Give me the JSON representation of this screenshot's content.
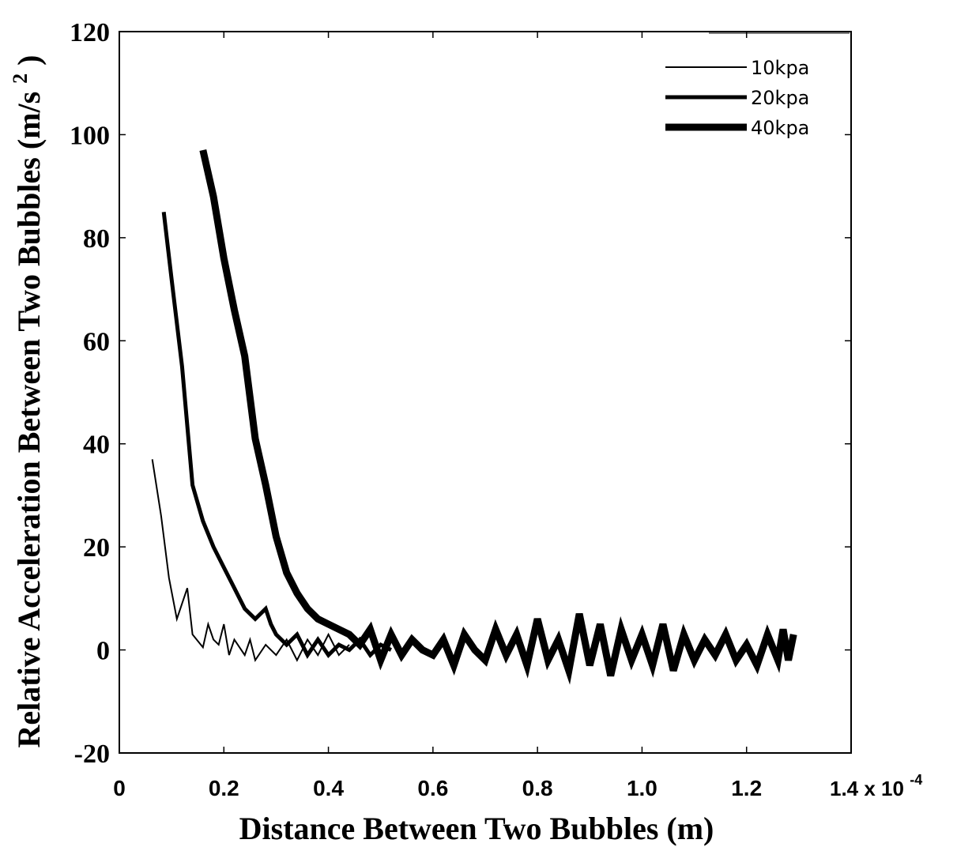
{
  "chart_data": {
    "type": "line",
    "xlabel": "Distance Between Two Bubbles (m)",
    "ylabel_main": "Relative Acceleration Between Two Bubbles (m/s",
    "ylabel_sup": "2",
    "ylabel_end": ")",
    "x_multiplier": "1.4 x 10",
    "x_multiplier_exp": "-4",
    "xlim": [
      0,
      1.4
    ],
    "ylim": [
      -20,
      120
    ],
    "xticks": [
      0,
      0.2,
      0.4,
      0.6,
      0.8,
      1.0,
      1.2
    ],
    "xtick_labels": [
      "0",
      "0.2",
      "0.4",
      "0.6",
      "0.8",
      "1.0",
      "1.2"
    ],
    "yticks": [
      -20,
      0,
      20,
      40,
      60,
      80,
      100,
      120
    ],
    "ytick_labels": [
      "-20",
      "0",
      "20",
      "40",
      "60",
      "80",
      "100",
      "120"
    ],
    "grid": false,
    "legend_position": "top-right",
    "series": [
      {
        "name": "10kpa",
        "line_weight": "thin",
        "points": [
          [
            0.063,
            37
          ],
          [
            0.08,
            26
          ],
          [
            0.095,
            14
          ],
          [
            0.11,
            6
          ],
          [
            0.13,
            12
          ],
          [
            0.14,
            3
          ],
          [
            0.16,
            0.5
          ],
          [
            0.17,
            5
          ],
          [
            0.18,
            2
          ],
          [
            0.19,
            1
          ],
          [
            0.2,
            5
          ],
          [
            0.21,
            -1
          ],
          [
            0.22,
            2
          ],
          [
            0.24,
            -1
          ],
          [
            0.25,
            2
          ],
          [
            0.26,
            -2
          ],
          [
            0.28,
            1
          ],
          [
            0.3,
            -1
          ],
          [
            0.32,
            2
          ],
          [
            0.34,
            -2
          ],
          [
            0.36,
            2
          ],
          [
            0.38,
            -1
          ],
          [
            0.4,
            3
          ],
          [
            0.42,
            -1
          ],
          [
            0.44,
            1
          ]
        ]
      },
      {
        "name": "20kpa",
        "line_weight": "medium",
        "points": [
          [
            0.085,
            85
          ],
          [
            0.1,
            72
          ],
          [
            0.12,
            55
          ],
          [
            0.14,
            32
          ],
          [
            0.16,
            25
          ],
          [
            0.18,
            20
          ],
          [
            0.2,
            16
          ],
          [
            0.22,
            12
          ],
          [
            0.24,
            8
          ],
          [
            0.26,
            6
          ],
          [
            0.28,
            8
          ],
          [
            0.29,
            5
          ],
          [
            0.3,
            3
          ],
          [
            0.32,
            1
          ],
          [
            0.34,
            3
          ],
          [
            0.36,
            -1
          ],
          [
            0.38,
            2
          ],
          [
            0.4,
            -1
          ],
          [
            0.42,
            1
          ],
          [
            0.44,
            0
          ],
          [
            0.46,
            2
          ],
          [
            0.48,
            -1
          ],
          [
            0.5,
            1
          ],
          [
            0.52,
            0
          ]
        ]
      },
      {
        "name": "40kpa",
        "line_weight": "thick",
        "points": [
          [
            0.16,
            97
          ],
          [
            0.18,
            88
          ],
          [
            0.2,
            76
          ],
          [
            0.22,
            66
          ],
          [
            0.24,
            57
          ],
          [
            0.26,
            41
          ],
          [
            0.28,
            32
          ],
          [
            0.3,
            22
          ],
          [
            0.32,
            15
          ],
          [
            0.34,
            11
          ],
          [
            0.36,
            8
          ],
          [
            0.38,
            6
          ],
          [
            0.4,
            5
          ],
          [
            0.42,
            4
          ],
          [
            0.44,
            3
          ],
          [
            0.46,
            1
          ],
          [
            0.48,
            4
          ],
          [
            0.5,
            -2
          ],
          [
            0.52,
            3
          ],
          [
            0.54,
            -1
          ],
          [
            0.56,
            2
          ],
          [
            0.58,
            0
          ],
          [
            0.6,
            -1
          ],
          [
            0.62,
            2
          ],
          [
            0.64,
            -3
          ],
          [
            0.66,
            3
          ],
          [
            0.68,
            0
          ],
          [
            0.7,
            -2
          ],
          [
            0.72,
            4
          ],
          [
            0.74,
            -1
          ],
          [
            0.76,
            3
          ],
          [
            0.78,
            -3
          ],
          [
            0.8,
            6
          ],
          [
            0.82,
            -2
          ],
          [
            0.84,
            2
          ],
          [
            0.86,
            -4
          ],
          [
            0.88,
            7
          ],
          [
            0.9,
            -3
          ],
          [
            0.92,
            5
          ],
          [
            0.94,
            -5
          ],
          [
            0.96,
            4
          ],
          [
            0.98,
            -2
          ],
          [
            1.0,
            3
          ],
          [
            1.02,
            -3
          ],
          [
            1.04,
            5
          ],
          [
            1.06,
            -4
          ],
          [
            1.08,
            3
          ],
          [
            1.1,
            -2
          ],
          [
            1.12,
            2
          ],
          [
            1.14,
            -1
          ],
          [
            1.16,
            3
          ],
          [
            1.18,
            -2
          ],
          [
            1.2,
            1
          ],
          [
            1.22,
            -3
          ],
          [
            1.24,
            3
          ],
          [
            1.26,
            -2
          ],
          [
            1.27,
            4
          ],
          [
            1.28,
            -2
          ],
          [
            1.29,
            3
          ]
        ]
      }
    ]
  }
}
